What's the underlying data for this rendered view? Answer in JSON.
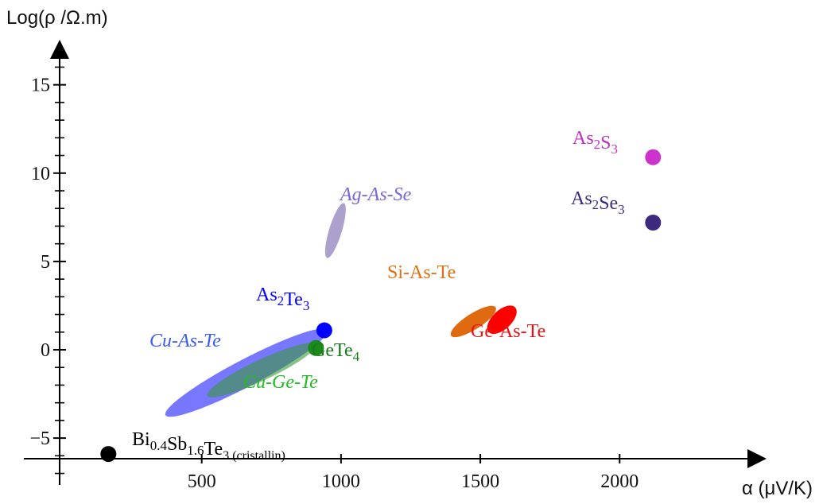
{
  "chart_data": {
    "type": "scatter",
    "title": "",
    "xlabel": "α (μV/K)",
    "ylabel": "Log(ρ /Ω.m)",
    "xlim": [
      -10,
      2630
    ],
    "ylim": [
      -7.2,
      18
    ],
    "x_ticks": [
      500,
      1000,
      1500,
      2000
    ],
    "y_ticks": [
      -5,
      0,
      5,
      10,
      15
    ],
    "x_tick_labels": [
      "500",
      "1000",
      "1500",
      "2000"
    ],
    "y_tick_labels": [
      "−5",
      "0",
      "5",
      "10",
      "15"
    ],
    "y_minor_step": 1,
    "grid": false,
    "legend": "none",
    "series": [
      {
        "label_main": "Bi",
        "label_sub1": "0.4",
        "label_mid1": "Sb",
        "label_sub2": "1.6",
        "label_mid2": "Te",
        "label_sub3": "3 (cristallin)",
        "shape": "point",
        "x": 165,
        "y": -5.9,
        "color": "#000000",
        "text_color": "#000000"
      },
      {
        "label_main": "As",
        "label_sub1": "2",
        "label_mid1": "Te",
        "label_sub2": "3",
        "shape": "point",
        "x": 940,
        "y": 1.1,
        "color": "#0000ff",
        "text_color": "#0000ff"
      },
      {
        "label_main": "GeTe",
        "label_sub1": "4",
        "shape": "point",
        "x": 910,
        "y": 0.1,
        "color": "#1a8a1a",
        "text_color": "#1a7a1a"
      },
      {
        "label_main": "As",
        "label_sub1": "2",
        "label_mid1": "S",
        "label_sub2": "3",
        "shape": "point",
        "x": 2120,
        "y": 10.9,
        "color": "#cc33cc",
        "text_color": "#c030c0"
      },
      {
        "label_main": "As",
        "label_sub1": "2",
        "label_mid1": "Se",
        "label_sub2": "3",
        "shape": "point",
        "x": 2120,
        "y": 7.2,
        "color": "#3b2a80",
        "text_color": "#3b2a80"
      },
      {
        "label_main": "Cu-As-Te",
        "italic": true,
        "shape": "region",
        "x_range": [
          370,
          950
        ],
        "y_range": [
          -3.7,
          1.1
        ],
        "color": "#4a4aff",
        "opacity": 0.75,
        "text_color": "#3c5cf0"
      },
      {
        "label_main": "Cu-Ge-Te",
        "italic": true,
        "shape": "region",
        "x_range": [
          520,
          910
        ],
        "y_range": [
          -2.6,
          0.3
        ],
        "color": "#3a9a3a",
        "opacity": 0.6,
        "text_color": "#22bb22"
      },
      {
        "label_main": "Ag-As-Se",
        "italic": true,
        "shape": "region",
        "x_range": [
          950,
          1010
        ],
        "y_range": [
          5.2,
          8.3
        ],
        "color": "#9d8fc4",
        "opacity": 0.85,
        "text_color": "#7a66d8"
      },
      {
        "label_main": "Si-As-Te",
        "italic": false,
        "shape": "region",
        "x_range": [
          1395,
          1555
        ],
        "y_range": [
          0.8,
          2.4
        ],
        "color": "#e06a10",
        "opacity": 1,
        "text_color": "#e07010"
      },
      {
        "label_main": "Ge-As-Te",
        "italic": false,
        "shape": "region",
        "x_range": [
          1530,
          1625
        ],
        "y_range": [
          1.0,
          2.4
        ],
        "color": "#ff0000",
        "opacity": 1,
        "text_color": "#ee1111"
      }
    ]
  }
}
